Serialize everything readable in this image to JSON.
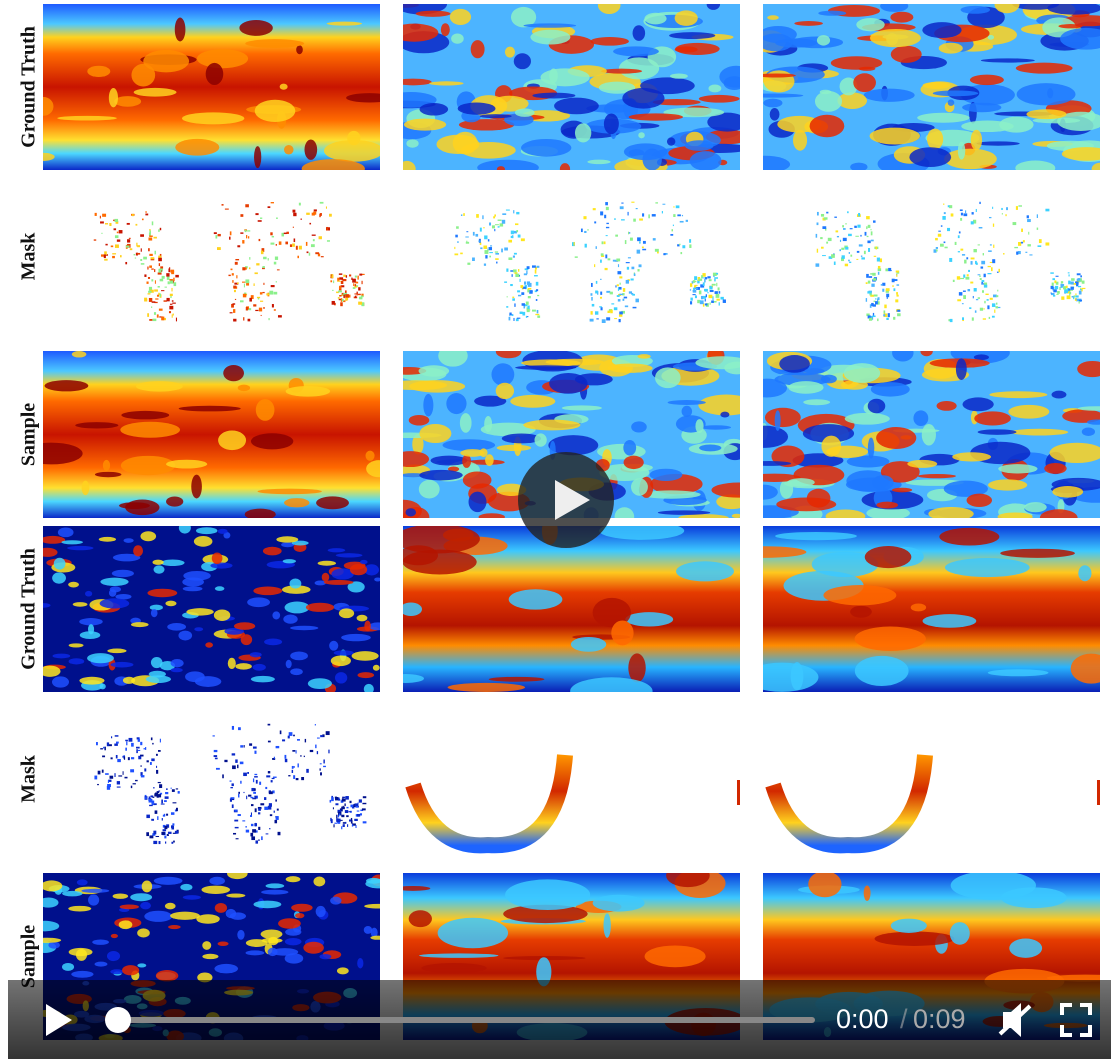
{
  "row_labels": [
    "Ground Truth",
    "Mask",
    "Sample",
    "Ground Truth",
    "Mask",
    "Sample"
  ],
  "player": {
    "current_time": "0:00",
    "separator": "/",
    "duration": "0:09"
  }
}
